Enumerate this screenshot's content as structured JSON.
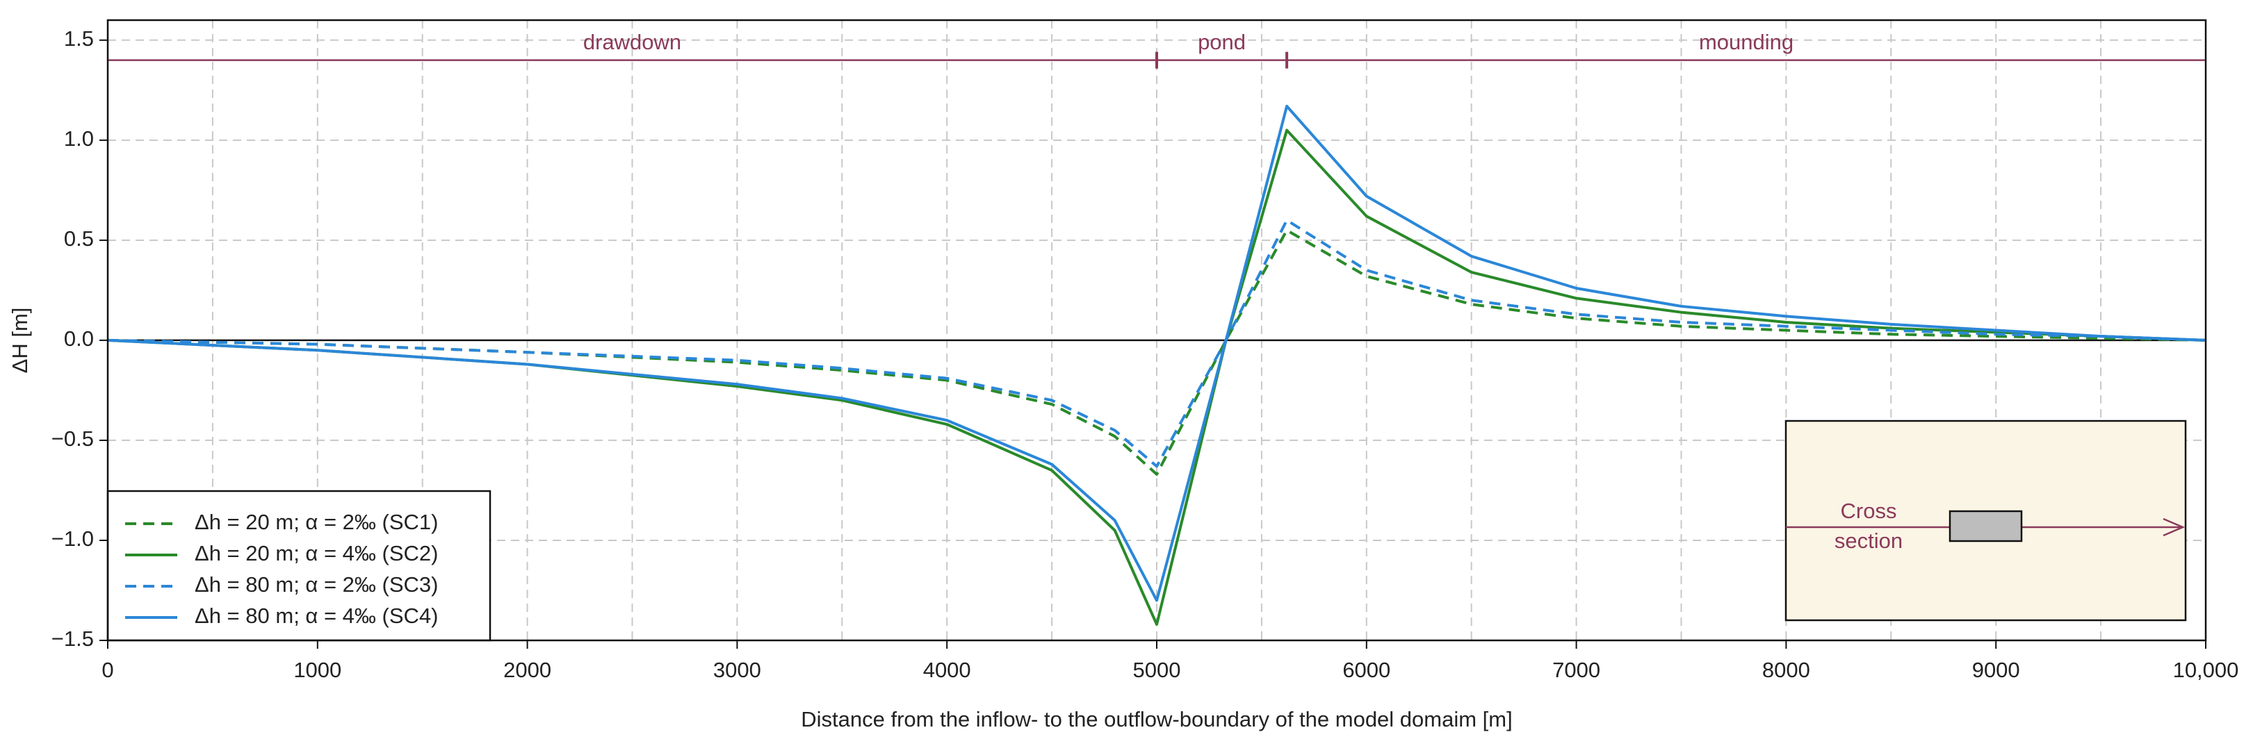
{
  "chart_data": {
    "type": "line",
    "xlabel": "Distance from the inflow- to the outflow-boundary of the model domaim [m]",
    "ylabel": "ΔH [m]",
    "x": [
      0,
      1000,
      2000,
      3000,
      3500,
      4000,
      4500,
      4800,
      5000,
      5330,
      5620,
      6000,
      6500,
      7000,
      7500,
      8000,
      8500,
      9000,
      9500,
      10000
    ],
    "series": [
      {
        "name": "Δh = 20 m; α = 2‰ (SC1)",
        "color": "#2a8a2a",
        "dash": true,
        "values": [
          0,
          -0.02,
          -0.06,
          -0.11,
          -0.15,
          -0.2,
          -0.32,
          -0.48,
          -0.67,
          0,
          0.55,
          0.32,
          0.18,
          0.11,
          0.07,
          0.05,
          0.03,
          0.02,
          0.01,
          0
        ]
      },
      {
        "name": "Δh = 20 m; α = 4‰ (SC2)",
        "color": "#2a8a2a",
        "dash": false,
        "values": [
          0,
          -0.05,
          -0.12,
          -0.23,
          -0.3,
          -0.42,
          -0.65,
          -0.95,
          -1.42,
          0,
          1.05,
          0.62,
          0.34,
          0.21,
          0.14,
          0.09,
          0.06,
          0.04,
          0.02,
          0
        ]
      },
      {
        "name": "Δh = 80 m; α = 2‰ (SC3)",
        "color": "#2b87d8",
        "dash": true,
        "values": [
          0,
          -0.02,
          -0.06,
          -0.1,
          -0.14,
          -0.19,
          -0.3,
          -0.45,
          -0.63,
          0,
          0.6,
          0.35,
          0.2,
          0.13,
          0.09,
          0.07,
          0.05,
          0.03,
          0.02,
          0
        ]
      },
      {
        "name": "Δh = 80 m; α = 4‰ (SC4)",
        "color": "#2b87d8",
        "dash": false,
        "values": [
          0,
          -0.05,
          -0.12,
          -0.22,
          -0.29,
          -0.4,
          -0.62,
          -0.9,
          -1.3,
          0,
          1.17,
          0.72,
          0.42,
          0.26,
          0.17,
          0.12,
          0.08,
          0.05,
          0.02,
          0
        ]
      }
    ],
    "xlim": [
      0,
      10000
    ],
    "xticks": [
      0,
      1000,
      2000,
      3000,
      4000,
      5000,
      6000,
      7000,
      8000,
      9000,
      {
        "value": 10000,
        "label": "10,000"
      }
    ],
    "ylim": [
      -1.5,
      1.6
    ],
    "yticks": [
      {
        "value": -1.5,
        "label": "−1.5"
      },
      {
        "value": -1,
        "label": "−1.0"
      },
      {
        "value": -0.5,
        "label": "−0.5"
      },
      {
        "value": 0,
        "label": "0.0"
      },
      0.5,
      {
        "value": 1,
        "label": "1.0"
      },
      1.5
    ],
    "grid": true,
    "minor_x_grid": true,
    "reference_line": 1.4,
    "reference_color": "#8b3a5a",
    "zones": [
      "drawdown",
      "pond",
      "mounding"
    ],
    "zone_bounds": [
      5000,
      5620
    ],
    "inset_text": [
      "Cross",
      "section"
    ],
    "legend": "lower left"
  }
}
